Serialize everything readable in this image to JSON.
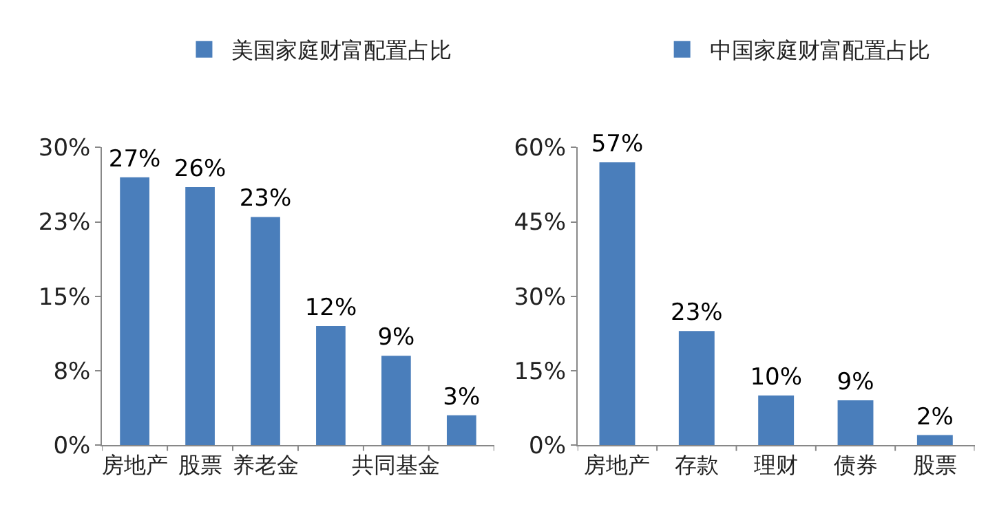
{
  "chart_data": [
    {
      "type": "bar",
      "categories": [
        "房地产",
        "股票",
        "养老金",
        null,
        "共同基金",
        null
      ],
      "series": [
        {
          "name": "美国家庭财富配置占比",
          "color": "#4a7ebb",
          "values": [
            27,
            26,
            23,
            12,
            9,
            3
          ],
          "value_labels": [
            "27%",
            "26%",
            "23%",
            "12%",
            "9%",
            "3%"
          ]
        }
      ],
      "ylim": [
        0,
        30
      ],
      "yticks": [
        {
          "value": 0,
          "label": "0%"
        },
        {
          "value": 7.5,
          "label": "8%"
        },
        {
          "value": 15,
          "label": "15%"
        },
        {
          "value": 22.5,
          "label": "23%"
        },
        {
          "value": 30,
          "label": "30%"
        }
      ],
      "legend": "top"
    },
    {
      "type": "bar",
      "categories": [
        "房地产",
        "存款",
        "理财",
        "债券",
        "股票"
      ],
      "series": [
        {
          "name": "中国家庭财富配置占比",
          "color": "#4a7ebb",
          "values": [
            57,
            23,
            10,
            9,
            2
          ],
          "value_labels": [
            "57%",
            "23%",
            "10%",
            "9%",
            "2%"
          ]
        }
      ],
      "ylim": [
        0,
        60
      ],
      "yticks": [
        {
          "value": 0,
          "label": "0%"
        },
        {
          "value": 15,
          "label": "15%"
        },
        {
          "value": 30,
          "label": "30%"
        },
        {
          "value": 45,
          "label": "45%"
        },
        {
          "value": 60,
          "label": "60%"
        }
      ],
      "legend": "top"
    }
  ]
}
